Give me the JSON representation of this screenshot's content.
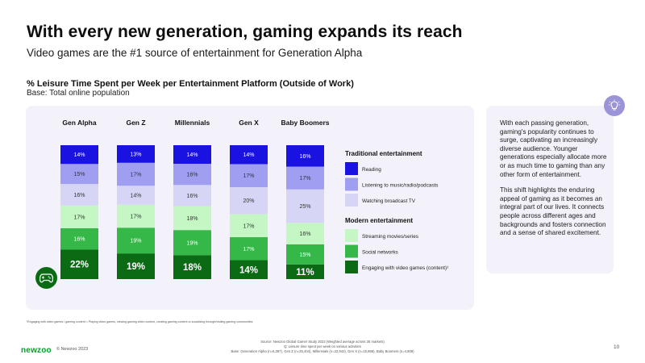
{
  "slide": {
    "title": "With every new generation, gaming expands its reach",
    "subtitle": "Video games are the #1 source of entertainment for Generation Alpha",
    "chart_title": "% Leisure Time Spent per Week per Entertainment Platform (Outside of Work)",
    "chart_base": "Base: Total online population",
    "side_paragraph_1": "With each passing generation, gaming's popularity continues to surge, captivating an increasingly diverse audience. Younger generations especially allocate more or as much time to gaming than any other form of entertainment.",
    "side_paragraph_2": "This shift highlights the enduring appeal of gaming as it becomes an integral part of our lives. It connects people across different ages and backgrounds and fosters connection and a sense of shared excitement.",
    "footnote": "¹Engaging with video games / gaming content = Playing video games, viewing gaming video content, creating gaming content or socializing through/visiting gaming communities",
    "brand": "newzoo",
    "copyright": "© Newzoo 2023",
    "source_line_1": "Source: Newzoo Global Gamer Study 2023 (Weighted average across 36 markets)",
    "source_line_2": "Q: Leisure time spent per week on various activities",
    "source_line_3": "Base: Generation Alpha (n=5,387), Gen Z (n=25,404), Millennials (n=22,942), Gen X (n=15,868), Baby Boomers (n=4,808)",
    "page_number": "10",
    "lightbulb_icon": "lightbulb-icon",
    "gamepad_icon": "gamepad-icon"
  },
  "chart_data": {
    "type": "bar",
    "stacked": true,
    "normalized_percent": true,
    "categories": [
      "Gen Alpha",
      "Gen Z",
      "Millennials",
      "Gen X",
      "Baby Boomers"
    ],
    "series": [
      {
        "name": "Engaging with video games (content)¹",
        "values": [
          22,
          19,
          18,
          14,
          11
        ],
        "color": "#0b6b14",
        "group": "Modern entertainment"
      },
      {
        "name": "Social networks",
        "values": [
          16,
          19,
          19,
          17,
          15
        ],
        "color": "#36b848",
        "group": "Modern entertainment"
      },
      {
        "name": "Streaming movies/series",
        "values": [
          17,
          17,
          18,
          17,
          16
        ],
        "color": "#c4f7c4",
        "group": "Modern entertainment"
      },
      {
        "name": "Watching broadcast TV",
        "values": [
          16,
          14,
          16,
          20,
          25
        ],
        "color": "#d6d5f6",
        "group": "Traditional entertainment"
      },
      {
        "name": "Listening to music/radio/podcasts",
        "values": [
          15,
          17,
          16,
          17,
          17
        ],
        "color": "#a09ef0",
        "group": "Traditional entertainment"
      },
      {
        "name": "Reading",
        "values": [
          14,
          13,
          14,
          14,
          16
        ],
        "color": "#1a12e0",
        "group": "Traditional entertainment"
      }
    ],
    "legend_groups": [
      {
        "title": "Traditional entertainment",
        "items": [
          "Reading",
          "Listening to music/radio/podcasts",
          "Watching broadcast TV"
        ]
      },
      {
        "title": "Modern entertainment",
        "items": [
          "Streaming movies/series",
          "Social networks",
          "Engaging with video games (content)¹"
        ]
      }
    ],
    "legend_placement": "right",
    "grid": false
  }
}
